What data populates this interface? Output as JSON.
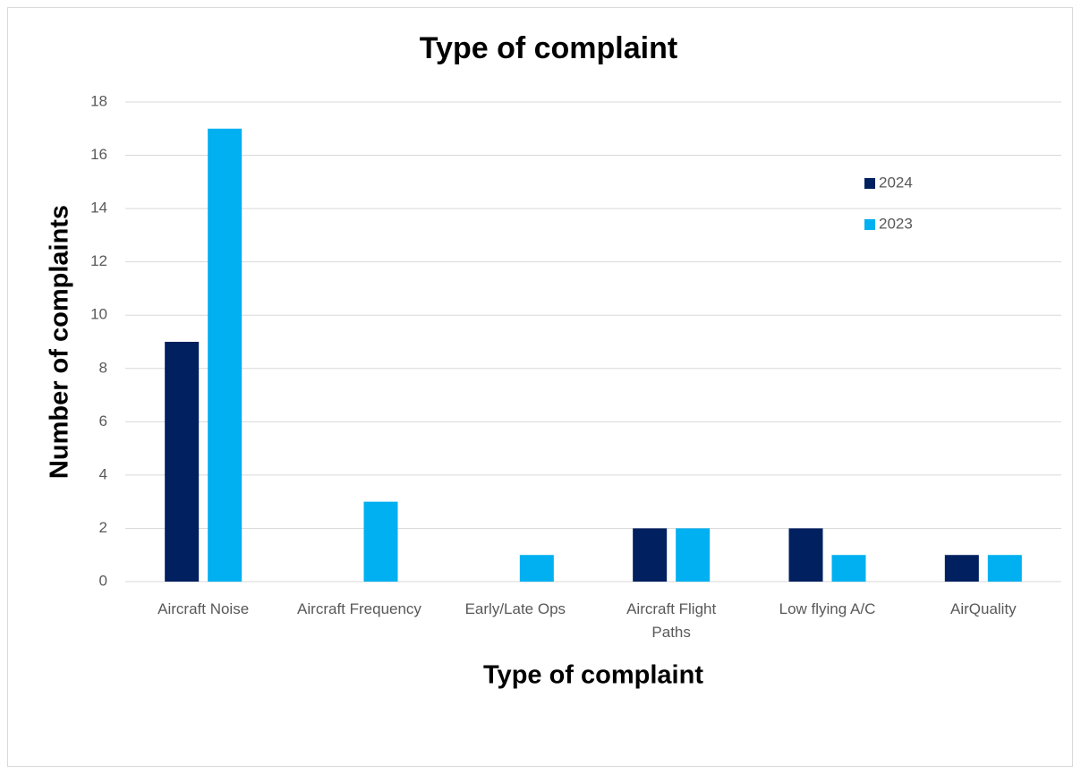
{
  "chart_data": {
    "type": "bar",
    "title": "Type of complaint",
    "x_label": "Type of complaint",
    "y_label": "Number of complaints",
    "categories": [
      "Aircraft Noise",
      "Aircraft Frequency",
      "Early/Late Ops",
      "Aircraft Flight Paths",
      "Low flying A/C",
      "AirQuality"
    ],
    "series": [
      {
        "name": "2024",
        "color": "#002060",
        "values": [
          9,
          0,
          0,
          2,
          2,
          1
        ]
      },
      {
        "name": "2023",
        "color": "#00b0f0",
        "values": [
          17,
          3,
          1,
          2,
          1,
          1
        ]
      }
    ],
    "ylim": [
      0,
      18
    ],
    "yticks": [
      0,
      2,
      4,
      6,
      8,
      10,
      12,
      14,
      16,
      18
    ],
    "grid": true,
    "legend": "top-right"
  }
}
